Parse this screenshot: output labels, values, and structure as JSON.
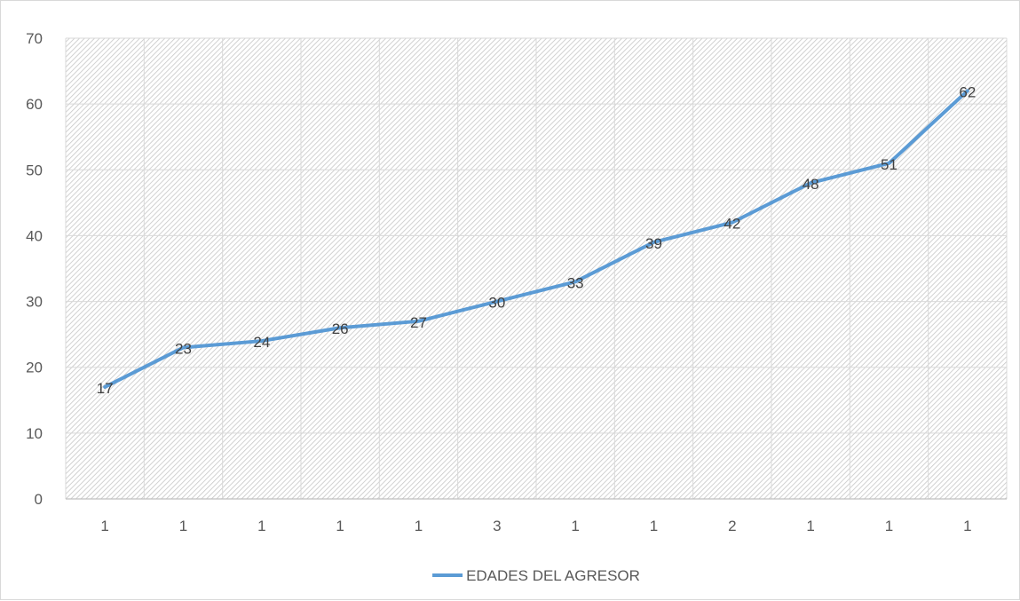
{
  "chart_data": {
    "type": "line",
    "title": "",
    "xlabel": "",
    "ylabel": "",
    "categories": [
      "1",
      "1",
      "1",
      "1",
      "1",
      "3",
      "1",
      "1",
      "2",
      "1",
      "1",
      "1"
    ],
    "series": [
      {
        "name": "EDADES DEL AGRESOR",
        "values": [
          17,
          23,
          24,
          26,
          27,
          30,
          33,
          39,
          42,
          48,
          51,
          62
        ],
        "color": "#5b9bd5"
      }
    ],
    "ylim": [
      0,
      70
    ],
    "yticks": [
      "0",
      "10",
      "20",
      "30",
      "40",
      "50",
      "60",
      "70"
    ],
    "grid": true,
    "plot_background": "hatched",
    "legend_position": "bottom",
    "data_labels": true
  }
}
